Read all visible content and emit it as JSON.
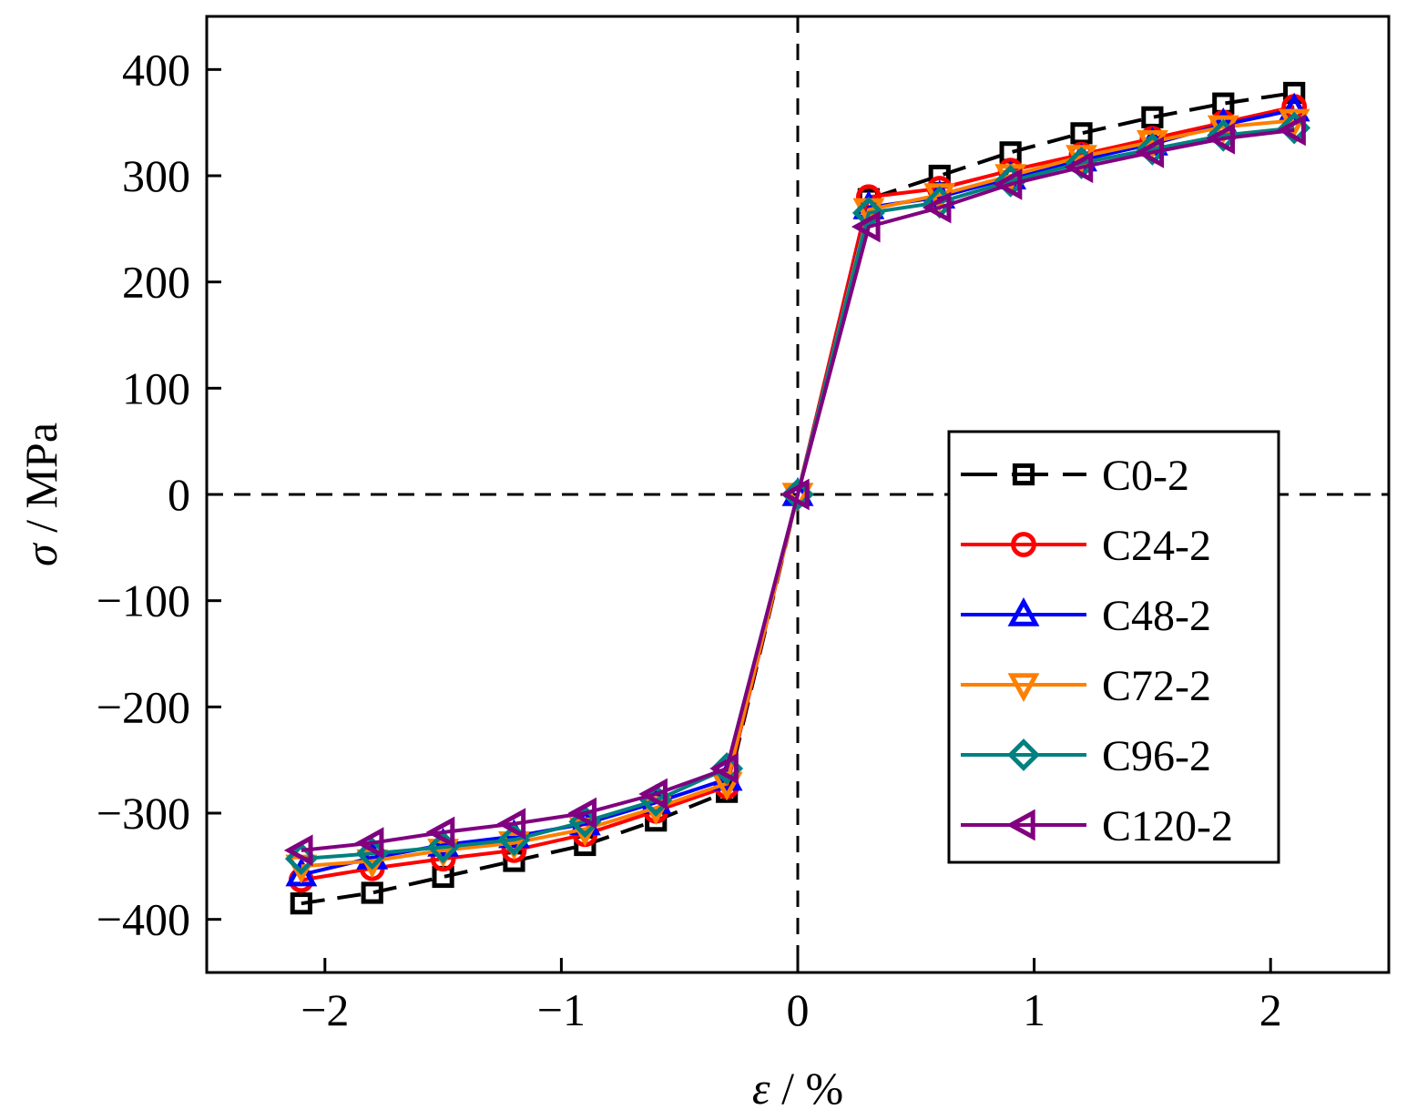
{
  "chart_data": {
    "type": "line",
    "title": "",
    "xlabel_symbol": "ε",
    "xlabel_unit": " / %",
    "ylabel_symbol": "σ",
    "ylabel_unit": " / MPa",
    "xlim": [
      -2.5,
      2.5
    ],
    "ylim": [
      -450,
      450
    ],
    "x_ticks": [
      -2,
      -1,
      0,
      1,
      2
    ],
    "x_tick_labels": [
      "−2",
      "−1",
      "0",
      "1",
      "2"
    ],
    "y_ticks": [
      -400,
      -300,
      -200,
      -100,
      0,
      100,
      200,
      300,
      400
    ],
    "y_tick_labels": [
      "−400",
      "−300",
      "−200",
      "−100",
      "0",
      "100",
      "200",
      "300",
      "400"
    ],
    "reference_lines": {
      "x": 0,
      "y": 0,
      "style": "dashed"
    },
    "legend_position": "center-right",
    "x": [
      -2.1,
      -1.8,
      -1.5,
      -1.2,
      -0.9,
      -0.6,
      -0.3,
      0,
      0.3,
      0.6,
      0.9,
      1.2,
      1.5,
      1.8,
      2.1
    ],
    "series": [
      {
        "name": "C0-2",
        "color": "#000000",
        "marker": "square",
        "dashed": true,
        "values": [
          -385,
          -375,
          -360,
          -345,
          -330,
          -307,
          -280,
          0,
          278,
          300,
          322,
          340,
          355,
          368,
          378
        ]
      },
      {
        "name": "C24-2",
        "color": "#ff0000",
        "marker": "circle",
        "dashed": false,
        "values": [
          -363,
          -352,
          -343,
          -335,
          -320,
          -298,
          -275,
          0,
          280,
          288,
          305,
          320,
          335,
          350,
          365
        ]
      },
      {
        "name": "C48-2",
        "color": "#0000ff",
        "marker": "triangle-up",
        "dashed": false,
        "values": [
          -358,
          -342,
          -330,
          -322,
          -310,
          -290,
          -268,
          0,
          270,
          280,
          298,
          315,
          330,
          348,
          362
        ]
      },
      {
        "name": "C72-2",
        "color": "#ff8000",
        "marker": "triangle-down",
        "dashed": false,
        "values": [
          -350,
          -345,
          -335,
          -328,
          -315,
          -295,
          -272,
          0,
          268,
          282,
          300,
          318,
          332,
          346,
          352
        ]
      },
      {
        "name": "C96-2",
        "color": "#008080",
        "marker": "diamond",
        "dashed": false,
        "values": [
          -343,
          -338,
          -332,
          -325,
          -308,
          -288,
          -258,
          0,
          265,
          275,
          295,
          312,
          325,
          338,
          345
        ]
      },
      {
        "name": "C120-2",
        "color": "#800080",
        "marker": "triangle-left",
        "dashed": false,
        "values": [
          -335,
          -328,
          -318,
          -310,
          -300,
          -282,
          -258,
          0,
          252,
          270,
          292,
          308,
          322,
          335,
          343
        ]
      }
    ]
  }
}
